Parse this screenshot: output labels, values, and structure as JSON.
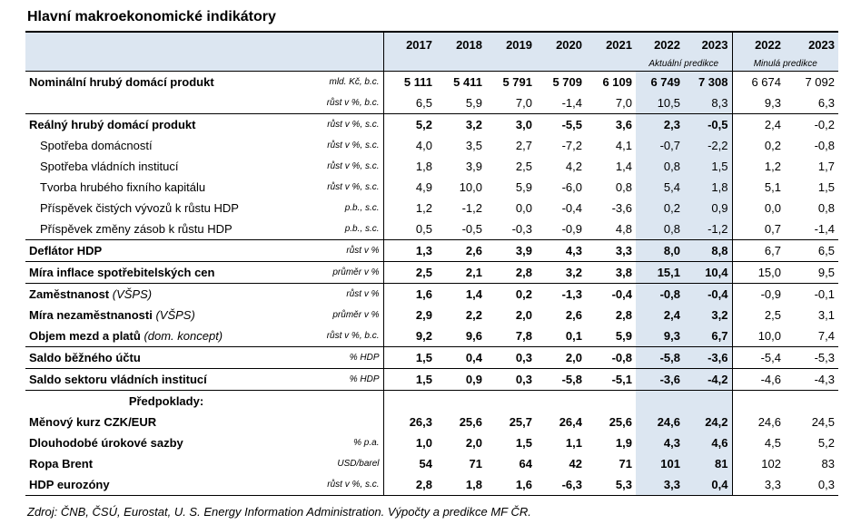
{
  "title": "Hlavní makroekonomické indikátory",
  "header": {
    "years": [
      "2017",
      "2018",
      "2019",
      "2020",
      "2021",
      "2022",
      "2023",
      "2022",
      "2023"
    ],
    "current_label": "Aktuální predikce",
    "previous_label": "Minulá predikce"
  },
  "rows": [
    {
      "name": "Nominální hrubý domácí produkt",
      "unit": "mld. Kč, b.c.",
      "v": [
        "5 111",
        "5 411",
        "5 791",
        "5 709",
        "6 109",
        "6 749",
        "7 308",
        "6 674",
        "7 092"
      ]
    },
    {
      "name": "",
      "unit": "růst v %, b.c.",
      "v": [
        "6,5",
        "5,9",
        "7,0",
        "-1,4",
        "7,0",
        "10,5",
        "8,3",
        "9,3",
        "6,3"
      ]
    },
    {
      "name": "Reálný hrubý domácí produkt",
      "unit": "růst v %, s.c.",
      "v": [
        "5,2",
        "3,2",
        "3,0",
        "-5,5",
        "3,6",
        "2,3",
        "-0,5",
        "2,4",
        "-0,2"
      ]
    },
    {
      "name": "Spotřeba domácností",
      "unit": "růst v %, s.c.",
      "v": [
        "4,0",
        "3,5",
        "2,7",
        "-7,2",
        "4,1",
        "-0,7",
        "-2,2",
        "0,2",
        "-0,8"
      ]
    },
    {
      "name": "Spotřeba vládních institucí",
      "unit": "růst v %, s.c.",
      "v": [
        "1,8",
        "3,9",
        "2,5",
        "4,2",
        "1,4",
        "0,8",
        "1,5",
        "1,2",
        "1,7"
      ]
    },
    {
      "name": "Tvorba hrubého fixního kapitálu",
      "unit": "růst v %, s.c.",
      "v": [
        "4,9",
        "10,0",
        "5,9",
        "-6,0",
        "0,8",
        "5,4",
        "1,8",
        "5,1",
        "1,5"
      ]
    },
    {
      "name": "Příspěvek čistých vývozů k růstu HDP",
      "unit": "p.b., s.c.",
      "v": [
        "1,2",
        "-1,2",
        "0,0",
        "-0,4",
        "-3,6",
        "0,2",
        "0,9",
        "0,0",
        "0,8"
      ]
    },
    {
      "name": "Příspěvek změny zásob k růstu HDP",
      "unit": "p.b., s.c.",
      "v": [
        "0,5",
        "-0,5",
        "-0,3",
        "-0,9",
        "4,8",
        "0,8",
        "-1,2",
        "0,7",
        "-1,4"
      ]
    },
    {
      "name": "Deflátor HDP",
      "unit": "růst v %",
      "v": [
        "1,3",
        "2,6",
        "3,9",
        "4,3",
        "3,3",
        "8,0",
        "8,8",
        "6,7",
        "6,5"
      ]
    },
    {
      "name": "Míra inflace spotřebitelských cen",
      "unit": "průměr v %",
      "v": [
        "2,5",
        "2,1",
        "2,8",
        "3,2",
        "3,8",
        "15,1",
        "10,4",
        "15,0",
        "9,5"
      ]
    },
    {
      "name": "Zaměstnanost",
      "note": "(VŠPS)",
      "unit": "růst v %",
      "v": [
        "1,6",
        "1,4",
        "0,2",
        "-1,3",
        "-0,4",
        "-0,8",
        "-0,4",
        "-0,9",
        "-0,1"
      ]
    },
    {
      "name": "Míra nezaměstnanosti",
      "note": "(VŠPS)",
      "unit": "průměr v %",
      "v": [
        "2,9",
        "2,2",
        "2,0",
        "2,6",
        "2,8",
        "2,4",
        "3,2",
        "2,5",
        "3,1"
      ]
    },
    {
      "name": "Objem mezd a platů",
      "note": "(dom. koncept)",
      "unit": "růst v %, b.c.",
      "v": [
        "9,2",
        "9,6",
        "7,8",
        "0,1",
        "5,9",
        "9,3",
        "6,7",
        "10,0",
        "7,4"
      ]
    },
    {
      "name": "Saldo běžného účtu",
      "unit": "% HDP",
      "v": [
        "1,5",
        "0,4",
        "0,3",
        "2,0",
        "-0,8",
        "-5,8",
        "-3,6",
        "-5,4",
        "-5,3"
      ]
    },
    {
      "name": "Saldo sektoru vládních institucí",
      "unit": "% HDP",
      "v": [
        "1,5",
        "0,9",
        "0,3",
        "-5,8",
        "-5,1",
        "-3,6",
        "-4,2",
        "-4,6",
        "-4,3"
      ]
    },
    {
      "name": "Měnový kurz CZK/EUR",
      "unit": "",
      "v": [
        "26,3",
        "25,6",
        "25,7",
        "26,4",
        "25,6",
        "24,6",
        "24,2",
        "24,6",
        "24,5"
      ]
    },
    {
      "name": "Dlouhodobé úrokové sazby",
      "unit": "% p.a.",
      "v": [
        "1,0",
        "2,0",
        "1,5",
        "1,1",
        "1,9",
        "4,3",
        "4,6",
        "4,5",
        "5,2"
      ]
    },
    {
      "name": "Ropa Brent",
      "unit": "USD/barel",
      "v": [
        "54",
        "71",
        "64",
        "42",
        "71",
        "101",
        "81",
        "102",
        "83"
      ]
    },
    {
      "name": "HDP eurozóny",
      "unit": "růst v %, s.c.",
      "v": [
        "2,8",
        "1,8",
        "1,6",
        "-6,3",
        "5,3",
        "3,3",
        "0,4",
        "3,3",
        "0,3"
      ]
    }
  ],
  "assumptions_label": "Předpoklady:",
  "source": "Zdroj: ČNB, ČSÚ, Eurostat, U. S. Energy Information Administration. Výpočty a predikce MF ČR."
}
